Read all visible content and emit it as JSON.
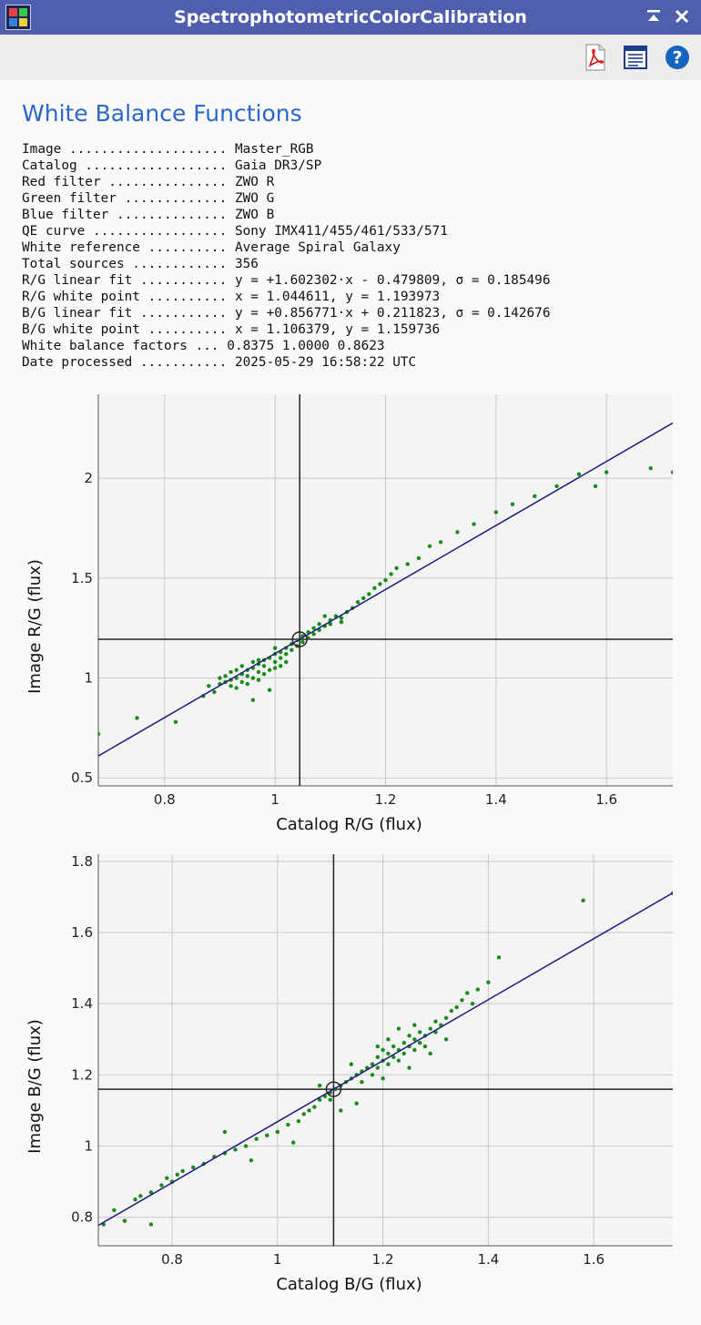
{
  "window": {
    "title": "SpectrophotometricColorCalibration"
  },
  "toolbar": {
    "icons": [
      "pdf-icon",
      "report-icon",
      "help-icon"
    ],
    "help_glyph": "?"
  },
  "heading": "White Balance Functions",
  "report": {
    "rows": [
      {
        "label": "Image ....................",
        "value": "Master_RGB"
      },
      {
        "label": "Catalog ..................",
        "value": "Gaia DR3/SP"
      },
      {
        "label": "Red filter ...............",
        "value": "ZWO R"
      },
      {
        "label": "Green filter .............",
        "value": "ZWO G"
      },
      {
        "label": "Blue filter ..............",
        "value": "ZWO B"
      },
      {
        "label": "QE curve .................",
        "value": "Sony IMX411/455/461/533/571"
      },
      {
        "label": "White reference ..........",
        "value": "Average Spiral Galaxy"
      },
      {
        "label": "Total sources ............",
        "value": "356"
      },
      {
        "label": "R/G linear fit ...........",
        "value": "y = +1.602302·x - 0.479809, σ = 0.185496"
      },
      {
        "label": "R/G white point ..........",
        "value": "x = 1.044611, y = 1.193973"
      },
      {
        "label": "B/G linear fit ...........",
        "value": "y = +0.856771·x + 0.211823, σ = 0.142676"
      },
      {
        "label": "B/G white point ..........",
        "value": "x = 1.106379, y = 1.159736"
      },
      {
        "label": "White balance factors ...",
        "value": "0.8375 1.0000 0.8623"
      },
      {
        "label": "Date processed ...........",
        "value": "2025-05-29 16:58:22 UTC"
      }
    ]
  },
  "colors": {
    "points": "#1a8a1a",
    "fit_line": "#1a1a80",
    "white_point": "#222222",
    "grid": "#c8c8c8",
    "title_bar": "#4f5fae",
    "heading": "#2a67c9"
  },
  "chart_data": [
    {
      "type": "scatter",
      "xlabel": "Catalog R/G (flux)",
      "ylabel": "Image R/G (flux)",
      "xlim": [
        0.68,
        1.72
      ],
      "ylim": [
        0.46,
        2.42
      ],
      "xticks": [
        0.8,
        1,
        1.2,
        1.4,
        1.6
      ],
      "yticks": [
        0.5,
        1,
        1.5,
        2
      ],
      "xtick_labels": [
        "0.8",
        "1",
        "1.2",
        "1.4",
        "1.6"
      ],
      "ytick_labels": [
        "0.5",
        "1",
        "1.5",
        "2"
      ],
      "grid": true,
      "fit": {
        "slope": 1.602302,
        "intercept": -0.479809,
        "sigma": 0.185496
      },
      "white_point": {
        "x": 1.044611,
        "y": 1.193973
      },
      "points": [
        [
          0.68,
          0.72
        ],
        [
          0.75,
          0.8
        ],
        [
          0.82,
          0.78
        ],
        [
          0.87,
          0.91
        ],
        [
          0.88,
          0.96
        ],
        [
          0.89,
          0.93
        ],
        [
          0.9,
          1.0
        ],
        [
          0.9,
          0.97
        ],
        [
          0.91,
          0.98
        ],
        [
          0.91,
          1.01
        ],
        [
          0.92,
          0.96
        ],
        [
          0.92,
          1.03
        ],
        [
          0.92,
          0.99
        ],
        [
          0.93,
          1.0
        ],
        [
          0.93,
          1.04
        ],
        [
          0.93,
          0.95
        ],
        [
          0.94,
          1.02
        ],
        [
          0.94,
          0.98
        ],
        [
          0.94,
          1.06
        ],
        [
          0.95,
          1.01
        ],
        [
          0.95,
          0.97
        ],
        [
          0.95,
          1.04
        ],
        [
          0.96,
          1.05
        ],
        [
          0.96,
          1.0
        ],
        [
          0.96,
          1.08
        ],
        [
          0.97,
          1.03
        ],
        [
          0.97,
          0.99
        ],
        [
          0.97,
          1.07
        ],
        [
          0.98,
          1.06
        ],
        [
          0.98,
          1.02
        ],
        [
          0.98,
          1.09
        ],
        [
          0.99,
          1.04
        ],
        [
          0.99,
          1.1
        ],
        [
          0.99,
          0.94
        ],
        [
          1.0,
          1.08
        ],
        [
          1.0,
          1.05
        ],
        [
          1.0,
          1.12
        ],
        [
          1.01,
          1.1
        ],
        [
          1.01,
          1.06
        ],
        [
          1.01,
          1.13
        ],
        [
          1.02,
          1.12
        ],
        [
          1.02,
          1.08
        ],
        [
          1.03,
          1.14
        ],
        [
          1.03,
          1.17
        ],
        [
          1.04,
          1.16
        ],
        [
          1.04,
          1.19
        ],
        [
          1.05,
          1.18
        ],
        [
          1.05,
          1.21
        ],
        [
          1.06,
          1.2
        ],
        [
          1.06,
          1.23
        ],
        [
          1.07,
          1.22
        ],
        [
          1.07,
          1.25
        ],
        [
          1.08,
          1.24
        ],
        [
          1.08,
          1.27
        ],
        [
          1.09,
          1.26
        ],
        [
          1.1,
          1.29
        ],
        [
          1.1,
          1.27
        ],
        [
          1.11,
          1.31
        ],
        [
          1.12,
          1.3
        ],
        [
          1.13,
          1.33
        ],
        [
          1.14,
          1.35
        ],
        [
          1.15,
          1.38
        ],
        [
          1.16,
          1.4
        ],
        [
          1.17,
          1.42
        ],
        [
          1.18,
          1.45
        ],
        [
          1.19,
          1.47
        ],
        [
          1.2,
          1.49
        ],
        [
          1.21,
          1.52
        ],
        [
          1.22,
          1.55
        ],
        [
          1.24,
          1.57
        ],
        [
          1.26,
          1.6
        ],
        [
          1.28,
          1.66
        ],
        [
          1.3,
          1.68
        ],
        [
          1.33,
          1.73
        ],
        [
          1.36,
          1.77
        ],
        [
          1.4,
          1.83
        ],
        [
          1.43,
          1.87
        ],
        [
          1.47,
          1.91
        ],
        [
          1.51,
          1.96
        ],
        [
          1.55,
          2.02
        ],
        [
          1.58,
          1.96
        ],
        [
          1.6,
          2.03
        ],
        [
          1.68,
          2.05
        ],
        [
          1.72,
          2.03
        ],
        [
          0.97,
          1.09
        ],
        [
          1.02,
          1.15
        ],
        [
          1.0,
          1.15
        ],
        [
          0.96,
          0.89
        ],
        [
          1.09,
          1.31
        ],
        [
          1.12,
          1.28
        ]
      ]
    },
    {
      "type": "scatter",
      "xlabel": "Catalog B/G (flux)",
      "ylabel": "Image B/G (flux)",
      "xlim": [
        0.66,
        1.75
      ],
      "ylim": [
        0.72,
        1.82
      ],
      "xticks": [
        0.8,
        1,
        1.2,
        1.4,
        1.6
      ],
      "yticks": [
        0.8,
        1,
        1.2,
        1.4,
        1.6,
        1.8
      ],
      "xtick_labels": [
        "0.8",
        "1",
        "1.2",
        "1.4",
        "1.6"
      ],
      "ytick_labels": [
        "0.8",
        "1",
        "1.2",
        "1.4",
        "1.6",
        "1.8"
      ],
      "grid": true,
      "fit": {
        "slope": 0.856771,
        "intercept": 0.211823,
        "sigma": 0.142676
      },
      "white_point": {
        "x": 1.106379,
        "y": 1.159736
      },
      "points": [
        [
          0.67,
          0.78
        ],
        [
          0.69,
          0.82
        ],
        [
          0.71,
          0.79
        ],
        [
          0.73,
          0.85
        ],
        [
          0.74,
          0.86
        ],
        [
          0.76,
          0.87
        ],
        [
          0.78,
          0.89
        ],
        [
          0.79,
          0.91
        ],
        [
          0.8,
          0.9
        ],
        [
          0.81,
          0.92
        ],
        [
          0.82,
          0.93
        ],
        [
          0.84,
          0.94
        ],
        [
          0.86,
          0.95
        ],
        [
          0.88,
          0.97
        ],
        [
          0.9,
          0.98
        ],
        [
          0.92,
          0.99
        ],
        [
          0.94,
          1.0
        ],
        [
          0.96,
          1.02
        ],
        [
          0.98,
          1.03
        ],
        [
          1.0,
          1.04
        ],
        [
          1.02,
          1.06
        ],
        [
          1.04,
          1.07
        ],
        [
          1.05,
          1.09
        ],
        [
          1.06,
          1.1
        ],
        [
          1.07,
          1.11
        ],
        [
          1.08,
          1.13
        ],
        [
          1.09,
          1.14
        ],
        [
          1.1,
          1.15
        ],
        [
          1.11,
          1.16
        ],
        [
          1.12,
          1.17
        ],
        [
          1.13,
          1.18
        ],
        [
          1.14,
          1.19
        ],
        [
          1.15,
          1.2
        ],
        [
          1.16,
          1.21
        ],
        [
          1.17,
          1.22
        ],
        [
          1.18,
          1.23
        ],
        [
          1.18,
          1.2
        ],
        [
          1.19,
          1.25
        ],
        [
          1.19,
          1.22
        ],
        [
          1.2,
          1.24
        ],
        [
          1.2,
          1.27
        ],
        [
          1.21,
          1.23
        ],
        [
          1.21,
          1.26
        ],
        [
          1.22,
          1.25
        ],
        [
          1.22,
          1.28
        ],
        [
          1.23,
          1.27
        ],
        [
          1.23,
          1.24
        ],
        [
          1.24,
          1.29
        ],
        [
          1.24,
          1.26
        ],
        [
          1.25,
          1.28
        ],
        [
          1.25,
          1.31
        ],
        [
          1.26,
          1.27
        ],
        [
          1.26,
          1.3
        ],
        [
          1.27,
          1.29
        ],
        [
          1.27,
          1.32
        ],
        [
          1.28,
          1.31
        ],
        [
          1.28,
          1.28
        ],
        [
          1.29,
          1.33
        ],
        [
          1.3,
          1.32
        ],
        [
          1.3,
          1.35
        ],
        [
          1.31,
          1.34
        ],
        [
          1.32,
          1.36
        ],
        [
          1.33,
          1.38
        ],
        [
          1.34,
          1.39
        ],
        [
          1.35,
          1.41
        ],
        [
          1.36,
          1.43
        ],
        [
          1.37,
          1.4
        ],
        [
          1.38,
          1.44
        ],
        [
          1.4,
          1.46
        ],
        [
          1.42,
          1.53
        ],
        [
          1.58,
          1.69
        ],
        [
          1.75,
          1.71
        ],
        [
          0.76,
          0.78
        ],
        [
          1.1,
          1.13
        ],
        [
          1.12,
          1.1
        ],
        [
          1.16,
          1.18
        ],
        [
          1.21,
          1.3
        ],
        [
          1.25,
          1.22
        ],
        [
          1.14,
          1.23
        ],
        [
          1.29,
          1.26
        ],
        [
          0.9,
          1.04
        ],
        [
          0.95,
          0.96
        ],
        [
          1.03,
          1.01
        ],
        [
          1.08,
          1.17
        ],
        [
          1.15,
          1.12
        ],
        [
          1.32,
          1.3
        ],
        [
          1.26,
          1.34
        ],
        [
          1.2,
          1.19
        ],
        [
          1.19,
          1.28
        ],
        [
          1.23,
          1.33
        ]
      ]
    }
  ]
}
